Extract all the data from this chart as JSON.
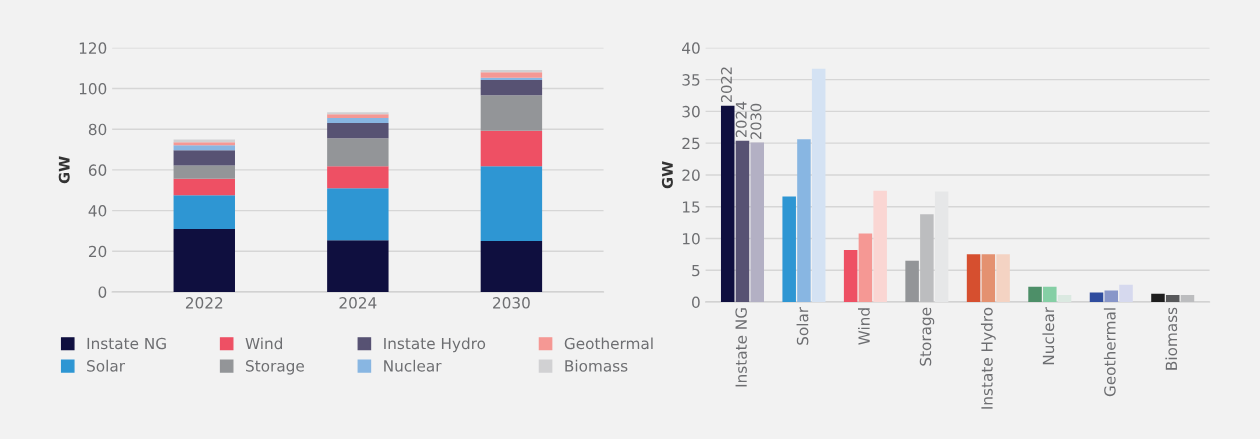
{
  "chart_data": [
    {
      "type": "bar",
      "stacked": true,
      "categories": [
        "2022",
        "2024",
        "2030"
      ],
      "ylabel": "GW",
      "ylim": [
        0,
        120
      ],
      "yticks": [
        0,
        20,
        40,
        60,
        80,
        100,
        120
      ],
      "grid": "y",
      "legend": "bottom",
      "series": [
        {
          "name": "Instate NG",
          "color": "#0f0f3f",
          "values": [
            30.9,
            25.4,
            25.1
          ]
        },
        {
          "name": "Solar",
          "color": "#2e96d3",
          "values": [
            16.6,
            25.6,
            36.7
          ]
        },
        {
          "name": "Wind",
          "color": "#ee5064",
          "values": [
            8.2,
            10.8,
            17.5
          ]
        },
        {
          "name": "Storage",
          "color": "#939598",
          "values": [
            6.5,
            13.8,
            17.4
          ]
        },
        {
          "name": "Instate Hydro",
          "color": "#575273",
          "values": [
            7.5,
            7.5,
            7.5
          ]
        },
        {
          "name": "Nuclear",
          "color": "#88b6e2",
          "values": [
            2.4,
            2.4,
            1.1
          ]
        },
        {
          "name": "Geothermal",
          "color": "#f59894",
          "values": [
            1.5,
            1.8,
            2.7
          ]
        },
        {
          "name": "Biomass",
          "color": "#d1d1d3",
          "values": [
            1.3,
            1.1,
            1.1
          ]
        }
      ]
    },
    {
      "type": "bar",
      "categories": [
        "Instate NG",
        "Solar",
        "Wind",
        "Storage",
        "Instate Hydro",
        "Nuclear",
        "Geothermal",
        "Biomass"
      ],
      "ylabel": "GW",
      "ylim": [
        0,
        40
      ],
      "yticks": [
        0,
        5,
        10,
        15,
        20,
        25,
        30,
        35,
        40
      ],
      "grid": "y",
      "legend": false,
      "series": [
        {
          "name": "2022",
          "colors": [
            "#0f0f3f",
            "#2e96d3",
            "#ee5064",
            "#939598",
            "#d64f2f",
            "#4d8f68",
            "#2f4c9e",
            "#1e1e1e"
          ],
          "values": [
            30.9,
            16.6,
            8.2,
            6.5,
            7.5,
            2.4,
            1.5,
            1.3
          ]
        },
        {
          "name": "2024",
          "colors": [
            "#575273",
            "#88b6e2",
            "#f59894",
            "#bcbdbf",
            "#e49170",
            "#85cfa5",
            "#8896c9",
            "#58595b"
          ],
          "values": [
            25.4,
            25.6,
            10.8,
            13.8,
            7.5,
            2.4,
            1.8,
            1.1
          ]
        },
        {
          "name": "2030",
          "colors": [
            "#b3b0c4",
            "#d4e2f3",
            "#fad6d3",
            "#e6e7e8",
            "#f4d3c3",
            "#dbe9e1",
            "#d6d9ee",
            "#bcbdbf"
          ],
          "values": [
            25.1,
            36.7,
            17.5,
            17.4,
            7.5,
            1.1,
            2.7,
            1.1
          ]
        }
      ]
    }
  ]
}
